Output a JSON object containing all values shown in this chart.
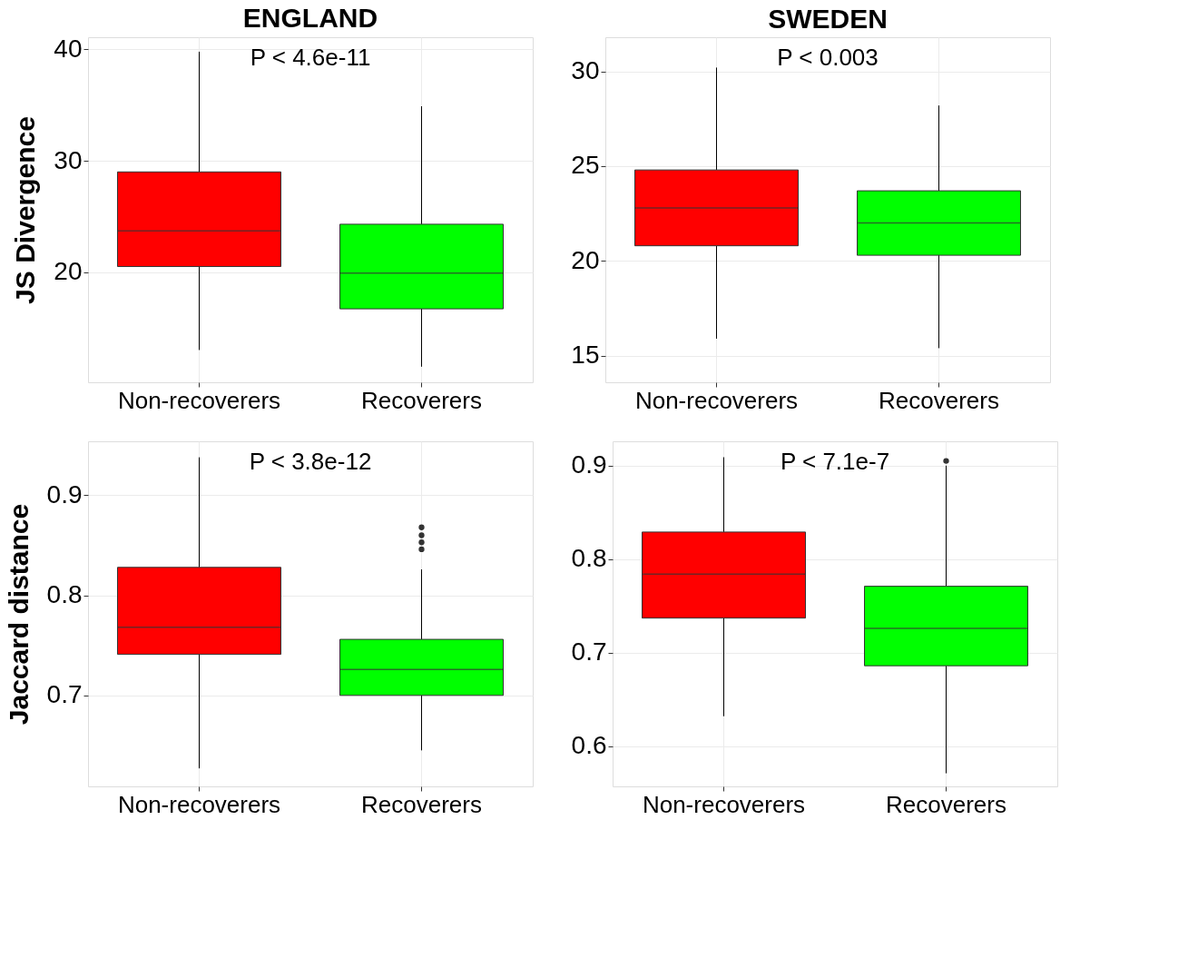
{
  "chart_data": [
    {
      "type": "box",
      "title": "ENGLAND",
      "ylabel": "JS Divergence",
      "categories": [
        "Non-recoverers",
        "Recoverers"
      ],
      "colors": [
        "#ff0000",
        "#00ff00"
      ],
      "ylim": [
        10.1,
        41.1
      ],
      "yticks": [
        20,
        30,
        40
      ],
      "grid": true,
      "annotations": [
        "P < 4.6e-11"
      ],
      "boxes": [
        {
          "low": 13.0,
          "q1": 20.5,
          "median": 23.7,
          "q3": 29.0,
          "high": 39.8
        },
        {
          "low": 11.5,
          "q1": 16.7,
          "median": 19.9,
          "q3": 24.3,
          "high": 34.9
        }
      ]
    },
    {
      "type": "box",
      "title": "SWEDEN",
      "categories": [
        "Non-recoverers",
        "Recoverers"
      ],
      "colors": [
        "#ff0000",
        "#00ff00"
      ],
      "ylim": [
        13.6,
        31.8
      ],
      "yticks": [
        15,
        20,
        25,
        30
      ],
      "grid": true,
      "annotations": [
        "P < 0.003"
      ],
      "boxes": [
        {
          "low": 15.9,
          "q1": 20.8,
          "median": 22.8,
          "q3": 24.8,
          "high": 30.2
        },
        {
          "low": 15.4,
          "q1": 20.3,
          "median": 22.0,
          "q3": 23.7,
          "high": 28.2
        }
      ]
    },
    {
      "type": "box",
      "ylabel": "Jaccard distance",
      "categories": [
        "Non-recoverers",
        "Recoverers"
      ],
      "colors": [
        "#ff0000",
        "#00ff00"
      ],
      "ylim": [
        0.609,
        0.954
      ],
      "yticks": [
        0.7,
        0.8,
        0.9
      ],
      "grid": true,
      "annotations": [
        "P < 3.8e-12"
      ],
      "boxes": [
        {
          "low": 0.627,
          "q1": 0.741,
          "median": 0.768,
          "q3": 0.828,
          "high": 0.938
        },
        {
          "low": 0.645,
          "q1": 0.7,
          "median": 0.726,
          "q3": 0.756,
          "high": 0.826,
          "outliers": [
            0.846,
            0.853,
            0.86,
            0.868
          ]
        }
      ]
    },
    {
      "type": "box",
      "categories": [
        "Non-recoverers",
        "Recoverers"
      ],
      "colors": [
        "#ff0000",
        "#00ff00"
      ],
      "ylim": [
        0.557,
        0.926
      ],
      "yticks": [
        0.6,
        0.7,
        0.8,
        0.9
      ],
      "grid": true,
      "annotations": [
        "P < 7.1e-7"
      ],
      "boxes": [
        {
          "low": 0.632,
          "q1": 0.737,
          "median": 0.784,
          "q3": 0.829,
          "high": 0.909
        },
        {
          "low": 0.571,
          "q1": 0.686,
          "median": 0.726,
          "q3": 0.771,
          "high": 0.9,
          "outliers": [
            0.905
          ]
        }
      ]
    }
  ]
}
